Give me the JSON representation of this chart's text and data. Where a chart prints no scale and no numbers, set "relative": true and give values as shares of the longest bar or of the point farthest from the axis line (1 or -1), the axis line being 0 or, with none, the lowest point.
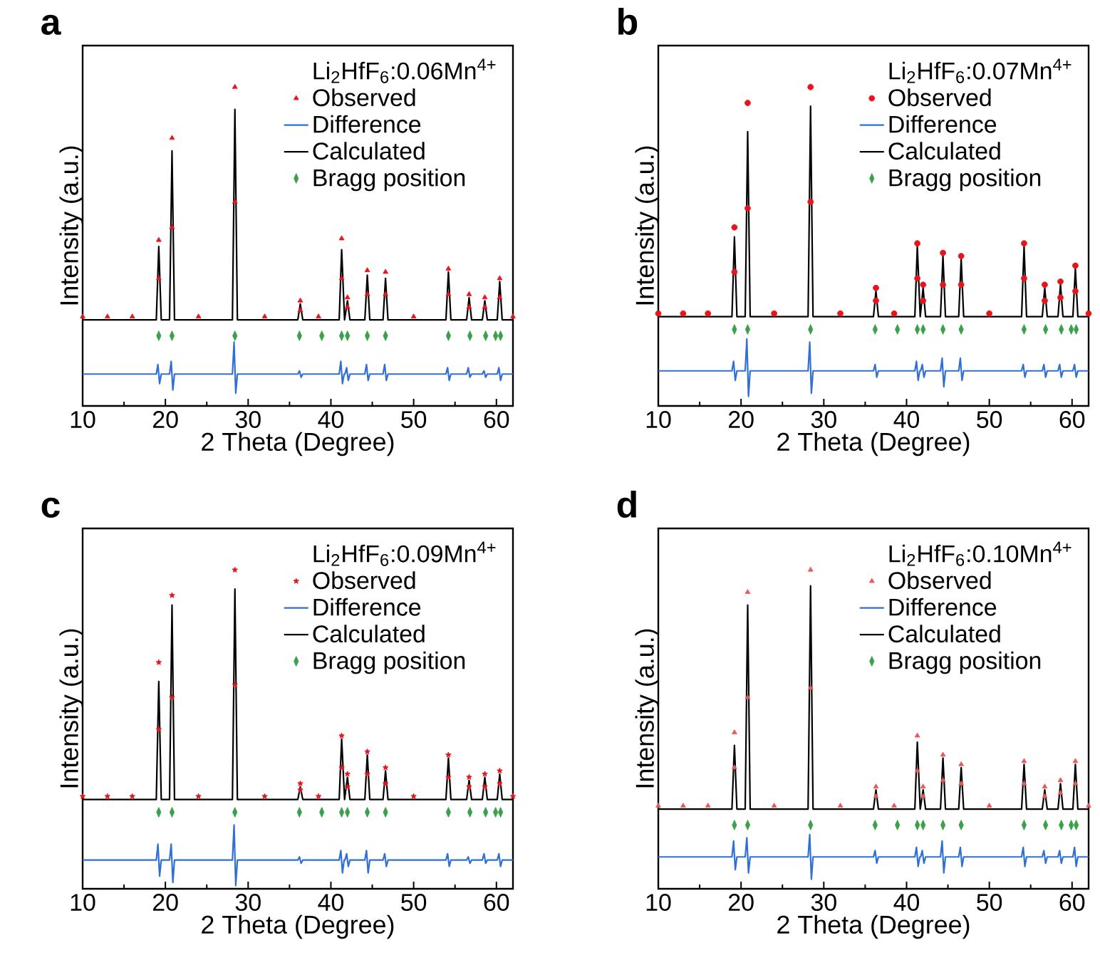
{
  "chart_data": [
    {
      "type": "line",
      "title": "a",
      "xlabel": "2 Theta (Degree)",
      "ylabel": "Intensity (a.u.)",
      "legend_title": "Li$_{2}$HfF$_{6}$:0.06Mn$^{4+}$",
      "relative": true,
      "legend": "top right",
      "xlim": [
        10,
        62
      ],
      "xticks": [
        10,
        20,
        30,
        40,
        50,
        60
      ],
      "series": [
        {
          "name": "Observed",
          "type": "scatter",
          "marker": "triangle",
          "color": "#e8141c",
          "x": [
            10,
            13,
            16,
            19.2,
            19.2,
            20.8,
            20.8,
            24,
            28.4,
            28.4,
            32,
            36.3,
            36.3,
            38.5,
            41.3,
            41.3,
            42.0,
            42.0,
            44.4,
            44.4,
            46.6,
            46.6,
            50,
            54.2,
            54.2,
            56.7,
            56.7,
            58.6,
            58.6,
            60.4,
            60.4,
            62
          ],
          "values": [
            0.28,
            0.28,
            0.28,
            0.4,
            0.52,
            0.56,
            0.84,
            0.28,
            0.64,
            1.0,
            0.28,
            0.3,
            0.33,
            0.28,
            0.4,
            0.525,
            0.31,
            0.34,
            0.35,
            0.425,
            0.35,
            0.42,
            0.28,
            0.35,
            0.43,
            0.31,
            0.35,
            0.31,
            0.34,
            0.34,
            0.4,
            0.28
          ]
        },
        {
          "name": "Difference",
          "type": "line",
          "color": "#2f6fd6",
          "x": [
            10,
            18.9,
            19.1,
            19.3,
            19.5,
            20.5,
            20.7,
            20.9,
            21.1,
            28.1,
            28.3,
            28.5,
            28.7,
            36.0,
            36.2,
            36.4,
            36.6,
            41.0,
            41.2,
            41.4,
            41.6,
            41.7,
            41.9,
            42.1,
            42.3,
            44.1,
            44.3,
            44.5,
            44.7,
            46.3,
            46.5,
            46.7,
            46.9,
            53.9,
            54.1,
            54.3,
            54.5,
            56.4,
            56.6,
            56.8,
            57.0,
            58.3,
            58.5,
            58.7,
            58.9,
            60.1,
            60.3,
            60.5,
            60.7,
            62
          ],
          "values": [
            0.1,
            0.1,
            0.13,
            0.07,
            0.1,
            0.1,
            0.14,
            0.05,
            0.1,
            0.1,
            0.2,
            0.04,
            0.1,
            0.1,
            0.11,
            0.09,
            0.1,
            0.1,
            0.14,
            0.07,
            0.1,
            0.1,
            0.12,
            0.08,
            0.1,
            0.1,
            0.13,
            0.08,
            0.1,
            0.1,
            0.13,
            0.08,
            0.1,
            0.1,
            0.12,
            0.08,
            0.1,
            0.1,
            0.12,
            0.09,
            0.1,
            0.1,
            0.11,
            0.09,
            0.1,
            0.1,
            0.12,
            0.08,
            0.1,
            0.1
          ]
        },
        {
          "name": "Calculated",
          "type": "line",
          "color": "#000000",
          "x": [
            10,
            18.9,
            19.2,
            19.5,
            20.5,
            20.8,
            21.1,
            28.1,
            28.4,
            28.7,
            36.0,
            36.3,
            36.6,
            41.0,
            41.3,
            41.65,
            42.0,
            42.3,
            44.1,
            44.4,
            44.7,
            46.3,
            46.6,
            46.9,
            53.9,
            54.2,
            54.5,
            56.4,
            56.7,
            57.0,
            58.3,
            58.6,
            58.9,
            60.1,
            60.4,
            60.7,
            62
          ],
          "values": [
            0.27,
            0.27,
            0.5,
            0.27,
            0.27,
            0.8,
            0.27,
            0.27,
            0.93,
            0.27,
            0.27,
            0.32,
            0.27,
            0.27,
            0.49,
            0.27,
            0.33,
            0.27,
            0.27,
            0.41,
            0.27,
            0.27,
            0.4,
            0.27,
            0.27,
            0.42,
            0.27,
            0.27,
            0.34,
            0.27,
            0.27,
            0.33,
            0.27,
            0.27,
            0.39,
            0.27,
            0.27
          ]
        },
        {
          "name": "Bragg position",
          "type": "scatter",
          "marker": "diamond",
          "color": "#3aa04a",
          "x": [
            19.2,
            20.8,
            28.4,
            36.2,
            38.9,
            41.3,
            42.0,
            44.4,
            46.6,
            54.2,
            56.8,
            58.7,
            59.9,
            60.5
          ],
          "values": [
            0.22,
            0.22,
            0.22,
            0.22,
            0.22,
            0.22,
            0.22,
            0.22,
            0.22,
            0.22,
            0.22,
            0.22,
            0.22,
            0.22
          ]
        }
      ]
    },
    {
      "type": "line",
      "title": "b",
      "xlabel": "2 Theta (Degree)",
      "ylabel": "Intensity (a.u.)",
      "legend_title": "Li$_{2}$HfF$_{6}$:0.07Mn$^{4+}$",
      "relative": true,
      "legend": "top right",
      "xlim": [
        10,
        62
      ],
      "xticks": [
        10,
        20,
        30,
        40,
        50,
        60
      ],
      "series": [
        {
          "name": "Observed",
          "type": "scatter",
          "marker": "circle",
          "color": "#e8141c",
          "x": [
            10,
            13,
            16,
            19.2,
            19.2,
            20.8,
            20.8,
            24,
            28.4,
            28.4,
            32,
            36.3,
            36.3,
            38.5,
            41.3,
            41.3,
            42.0,
            42.0,
            44.4,
            44.4,
            46.6,
            46.6,
            50,
            54.2,
            54.2,
            56.7,
            56.7,
            58.6,
            58.6,
            60.4,
            60.4,
            62
          ],
          "values": [
            0.29,
            0.29,
            0.29,
            0.42,
            0.56,
            0.62,
            0.95,
            0.29,
            0.64,
            1.0,
            0.29,
            0.33,
            0.37,
            0.29,
            0.4,
            0.51,
            0.33,
            0.38,
            0.38,
            0.48,
            0.38,
            0.47,
            0.29,
            0.4,
            0.51,
            0.33,
            0.38,
            0.34,
            0.39,
            0.36,
            0.44,
            0.29
          ]
        },
        {
          "name": "Difference",
          "type": "line",
          "color": "#2f6fd6",
          "x": [
            10,
            18.9,
            19.1,
            19.3,
            19.5,
            20.5,
            20.7,
            20.9,
            21.1,
            28.1,
            28.3,
            28.5,
            28.7,
            36.0,
            36.2,
            36.4,
            36.6,
            41.0,
            41.2,
            41.4,
            41.6,
            41.7,
            41.9,
            42.1,
            42.3,
            44.1,
            44.3,
            44.5,
            44.7,
            46.3,
            46.5,
            46.7,
            46.9,
            53.9,
            54.1,
            54.3,
            54.5,
            56.4,
            56.6,
            56.8,
            57.0,
            58.3,
            58.5,
            58.7,
            58.9,
            60.1,
            60.3,
            60.5,
            60.7,
            62
          ],
          "values": [
            0.11,
            0.11,
            0.14,
            0.08,
            0.11,
            0.11,
            0.21,
            0.03,
            0.11,
            0.11,
            0.2,
            0.04,
            0.11,
            0.11,
            0.13,
            0.09,
            0.11,
            0.11,
            0.14,
            0.08,
            0.11,
            0.11,
            0.13,
            0.09,
            0.11,
            0.11,
            0.15,
            0.06,
            0.11,
            0.11,
            0.15,
            0.08,
            0.11,
            0.11,
            0.13,
            0.09,
            0.11,
            0.11,
            0.13,
            0.09,
            0.11,
            0.11,
            0.13,
            0.09,
            0.11,
            0.11,
            0.13,
            0.09,
            0.11,
            0.11
          ]
        },
        {
          "name": "Calculated",
          "type": "line",
          "color": "#000000",
          "x": [
            10,
            18.9,
            19.2,
            19.5,
            20.5,
            20.8,
            21.1,
            28.1,
            28.4,
            28.7,
            36.0,
            36.3,
            36.6,
            41.0,
            41.3,
            41.65,
            42.0,
            42.3,
            44.1,
            44.4,
            44.7,
            46.3,
            46.6,
            46.9,
            53.9,
            54.2,
            54.5,
            56.4,
            56.7,
            57.0,
            58.3,
            58.6,
            58.9,
            60.1,
            60.4,
            60.7,
            62
          ],
          "values": [
            0.28,
            0.28,
            0.53,
            0.28,
            0.28,
            0.86,
            0.28,
            0.28,
            0.94,
            0.28,
            0.28,
            0.36,
            0.28,
            0.28,
            0.5,
            0.28,
            0.37,
            0.28,
            0.28,
            0.47,
            0.28,
            0.28,
            0.46,
            0.28,
            0.28,
            0.5,
            0.28,
            0.28,
            0.37,
            0.28,
            0.28,
            0.38,
            0.28,
            0.28,
            0.43,
            0.28,
            0.28
          ]
        },
        {
          "name": "Bragg position",
          "type": "scatter",
          "marker": "diamond",
          "color": "#3aa04a",
          "x": [
            19.2,
            20.8,
            28.4,
            36.2,
            38.9,
            41.3,
            42.0,
            44.4,
            46.6,
            54.2,
            56.8,
            58.7,
            59.9,
            60.5
          ],
          "values": [
            0.24,
            0.24,
            0.24,
            0.24,
            0.24,
            0.24,
            0.24,
            0.24,
            0.24,
            0.24,
            0.24,
            0.24,
            0.24,
            0.24
          ]
        }
      ]
    },
    {
      "type": "line",
      "title": "c",
      "xlabel": "2 Theta (Degree)",
      "ylabel": "Intensity (a.u.)",
      "legend_title": "Li$_{2}$HfF$_{6}$:0.09Mn$^{4+}$",
      "relative": true,
      "legend": "top right",
      "xlim": [
        10,
        62
      ],
      "xticks": [
        10,
        20,
        30,
        40,
        50,
        60
      ],
      "series": [
        {
          "name": "Observed",
          "type": "scatter",
          "marker": "star",
          "color": "#e8141c",
          "x": [
            10,
            13,
            16,
            19.2,
            19.2,
            20.8,
            20.8,
            24,
            28.4,
            28.4,
            32,
            36.3,
            36.3,
            38.5,
            41.3,
            41.3,
            42.0,
            42.0,
            44.4,
            44.4,
            46.6,
            46.6,
            50,
            54.2,
            54.2,
            56.7,
            56.7,
            58.6,
            58.6,
            60.4,
            60.4,
            62
          ],
          "values": [
            0.29,
            0.29,
            0.29,
            0.5,
            0.71,
            0.6,
            0.92,
            0.29,
            0.64,
            1.0,
            0.29,
            0.31,
            0.33,
            0.29,
            0.38,
            0.48,
            0.32,
            0.36,
            0.36,
            0.43,
            0.33,
            0.38,
            0.29,
            0.35,
            0.42,
            0.32,
            0.35,
            0.32,
            0.36,
            0.33,
            0.37,
            0.29
          ]
        },
        {
          "name": "Difference",
          "type": "line",
          "color": "#2f6fd6",
          "x": [
            10,
            18.9,
            19.1,
            19.3,
            19.5,
            20.5,
            20.7,
            20.9,
            21.1,
            28.1,
            28.3,
            28.5,
            28.7,
            36.0,
            36.2,
            36.4,
            36.6,
            41.0,
            41.2,
            41.4,
            41.6,
            41.7,
            41.9,
            42.1,
            42.3,
            44.1,
            44.3,
            44.5,
            44.7,
            46.3,
            46.5,
            46.7,
            46.9,
            53.9,
            54.1,
            54.3,
            54.5,
            56.4,
            56.6,
            56.8,
            57.0,
            58.3,
            58.5,
            58.7,
            58.9,
            60.1,
            60.3,
            60.5,
            60.7,
            62
          ],
          "values": [
            0.09,
            0.09,
            0.14,
            0.04,
            0.09,
            0.09,
            0.14,
            0.02,
            0.09,
            0.09,
            0.2,
            0.01,
            0.09,
            0.09,
            0.1,
            0.08,
            0.09,
            0.09,
            0.12,
            0.05,
            0.09,
            0.09,
            0.11,
            0.07,
            0.09,
            0.09,
            0.12,
            0.05,
            0.09,
            0.09,
            0.11,
            0.07,
            0.09,
            0.09,
            0.11,
            0.07,
            0.09,
            0.09,
            0.1,
            0.08,
            0.09,
            0.09,
            0.11,
            0.08,
            0.09,
            0.09,
            0.11,
            0.07,
            0.09,
            0.09
          ]
        },
        {
          "name": "Calculated",
          "type": "line",
          "color": "#000000",
          "x": [
            10,
            18.9,
            19.2,
            19.5,
            20.5,
            20.8,
            21.1,
            28.1,
            28.4,
            28.7,
            36.0,
            36.3,
            36.6,
            41.0,
            41.3,
            41.65,
            42.0,
            42.3,
            44.1,
            44.4,
            44.7,
            46.3,
            46.6,
            46.9,
            53.9,
            54.2,
            54.5,
            56.4,
            56.7,
            57.0,
            58.3,
            58.6,
            58.9,
            60.1,
            60.4,
            60.7,
            62
          ],
          "values": [
            0.28,
            0.28,
            0.65,
            0.28,
            0.28,
            0.89,
            0.28,
            0.28,
            0.94,
            0.28,
            0.28,
            0.32,
            0.28,
            0.28,
            0.47,
            0.28,
            0.35,
            0.28,
            0.28,
            0.42,
            0.28,
            0.28,
            0.37,
            0.28,
            0.28,
            0.41,
            0.28,
            0.28,
            0.34,
            0.28,
            0.28,
            0.35,
            0.28,
            0.28,
            0.36,
            0.28,
            0.28
          ]
        },
        {
          "name": "Bragg position",
          "type": "scatter",
          "marker": "diamond",
          "color": "#3aa04a",
          "x": [
            19.2,
            20.8,
            28.4,
            36.2,
            38.9,
            41.3,
            42.0,
            44.4,
            46.6,
            54.2,
            56.8,
            58.7,
            59.9,
            60.5
          ],
          "values": [
            0.24,
            0.24,
            0.24,
            0.24,
            0.24,
            0.24,
            0.24,
            0.24,
            0.24,
            0.24,
            0.24,
            0.24,
            0.24,
            0.24
          ]
        }
      ]
    },
    {
      "type": "line",
      "title": "d",
      "xlabel": "2 Theta (Degree)",
      "ylabel": "Intensity (a.u.)",
      "legend_title": "Li$_{2}$HfF$_{6}$:0.10Mn$^{4+}$",
      "relative": true,
      "legend": "top right",
      "xlim": [
        10,
        62
      ],
      "xticks": [
        10,
        20,
        30,
        40,
        50,
        60
      ],
      "series": [
        {
          "name": "Observed",
          "type": "scatter",
          "marker": "triangle",
          "color": "#e85a5a",
          "x": [
            10,
            13,
            16,
            19.2,
            19.2,
            20.8,
            20.8,
            24,
            28.4,
            28.4,
            32,
            36.3,
            36.3,
            38.5,
            41.3,
            41.3,
            42.0,
            42.0,
            44.4,
            44.4,
            46.6,
            46.6,
            50,
            54.2,
            54.2,
            56.7,
            56.7,
            58.6,
            58.6,
            60.4,
            60.4,
            62
          ],
          "values": [
            0.26,
            0.26,
            0.26,
            0.38,
            0.49,
            0.6,
            0.93,
            0.26,
            0.63,
            1.0,
            0.26,
            0.29,
            0.32,
            0.26,
            0.37,
            0.48,
            0.29,
            0.32,
            0.34,
            0.42,
            0.33,
            0.39,
            0.26,
            0.33,
            0.4,
            0.29,
            0.32,
            0.3,
            0.34,
            0.33,
            0.4,
            0.26
          ]
        },
        {
          "name": "Difference",
          "type": "line",
          "color": "#2f6fd6",
          "x": [
            10,
            18.9,
            19.1,
            19.3,
            19.5,
            20.5,
            20.7,
            20.9,
            21.1,
            28.1,
            28.3,
            28.5,
            28.7,
            36.0,
            36.2,
            36.4,
            36.6,
            41.0,
            41.2,
            41.4,
            41.6,
            41.7,
            41.9,
            42.1,
            42.3,
            44.1,
            44.3,
            44.5,
            44.7,
            46.3,
            46.5,
            46.7,
            46.9,
            53.9,
            54.1,
            54.3,
            54.5,
            56.4,
            56.6,
            56.8,
            57.0,
            58.3,
            58.5,
            58.7,
            58.9,
            60.1,
            60.3,
            60.5,
            60.7,
            62
          ],
          "values": [
            0.1,
            0.1,
            0.15,
            0.06,
            0.1,
            0.1,
            0.16,
            0.05,
            0.1,
            0.1,
            0.17,
            0.03,
            0.1,
            0.1,
            0.12,
            0.08,
            0.1,
            0.1,
            0.13,
            0.07,
            0.1,
            0.1,
            0.12,
            0.08,
            0.1,
            0.1,
            0.15,
            0.05,
            0.1,
            0.1,
            0.13,
            0.07,
            0.1,
            0.1,
            0.13,
            0.07,
            0.1,
            0.1,
            0.12,
            0.08,
            0.1,
            0.1,
            0.12,
            0.08,
            0.1,
            0.1,
            0.13,
            0.07,
            0.1,
            0.1
          ]
        },
        {
          "name": "Calculated",
          "type": "line",
          "color": "#000000",
          "x": [
            10,
            18.9,
            19.2,
            19.5,
            20.5,
            20.8,
            21.1,
            28.1,
            28.4,
            28.7,
            36.0,
            36.3,
            36.6,
            41.0,
            41.3,
            41.65,
            42.0,
            42.3,
            44.1,
            44.4,
            44.7,
            46.3,
            46.6,
            46.9,
            53.9,
            54.2,
            54.5,
            56.4,
            56.7,
            57.0,
            58.3,
            58.6,
            58.9,
            60.1,
            60.4,
            60.7,
            62
          ],
          "values": [
            0.25,
            0.25,
            0.45,
            0.25,
            0.25,
            0.89,
            0.25,
            0.25,
            0.95,
            0.25,
            0.25,
            0.31,
            0.25,
            0.25,
            0.46,
            0.25,
            0.31,
            0.25,
            0.25,
            0.41,
            0.25,
            0.25,
            0.38,
            0.25,
            0.25,
            0.39,
            0.25,
            0.25,
            0.31,
            0.25,
            0.25,
            0.33,
            0.25,
            0.25,
            0.39,
            0.25,
            0.25
          ]
        },
        {
          "name": "Bragg position",
          "type": "scatter",
          "marker": "diamond",
          "color": "#3aa04a",
          "x": [
            19.2,
            20.8,
            28.4,
            36.2,
            38.9,
            41.3,
            42.0,
            44.4,
            46.6,
            54.2,
            56.8,
            58.7,
            59.9,
            60.5
          ],
          "values": [
            0.2,
            0.2,
            0.2,
            0.2,
            0.2,
            0.2,
            0.2,
            0.2,
            0.2,
            0.2,
            0.2,
            0.2,
            0.2,
            0.2
          ]
        }
      ]
    }
  ]
}
